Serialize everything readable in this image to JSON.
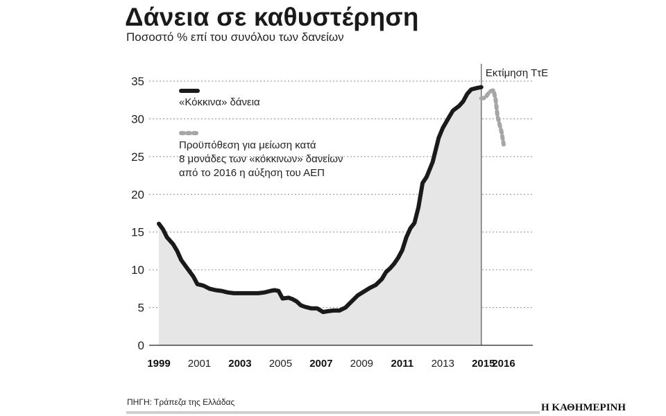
{
  "header": {
    "title": "Δάνεια σε καθυστέρηση",
    "subtitle": "Ποσοστό % επί του συνόλου των δανείων"
  },
  "footer": {
    "source": "ΠΗΓΗ: Τράπεζα της Ελλάδας",
    "publisher": "Η ΚΑΘΗΜΕΡΙΝΗ"
  },
  "chart_data": {
    "type": "line",
    "title": "Δάνεια σε καθυστέρηση",
    "subtitle": "Ποσοστό % επί του συνόλου των δανείων",
    "xlabel": "",
    "ylabel": "",
    "ylim": [
      0,
      35
    ],
    "yticks": [
      0,
      5,
      10,
      15,
      20,
      25,
      30,
      35
    ],
    "xlim": [
      1999,
      2016
    ],
    "xticks": [
      {
        "value": 1999,
        "label": "1999",
        "bold": true
      },
      {
        "value": 2001,
        "label": "2001",
        "bold": false
      },
      {
        "value": 2003,
        "label": "2003",
        "bold": true
      },
      {
        "value": 2005,
        "label": "2005",
        "bold": false
      },
      {
        "value": 2007,
        "label": "2007",
        "bold": true
      },
      {
        "value": 2009,
        "label": "2009",
        "bold": false
      },
      {
        "value": 2011,
        "label": "2011",
        "bold": true
      },
      {
        "value": 2013,
        "label": "2013",
        "bold": false
      },
      {
        "value": 2015,
        "label": "2015",
        "bold": true
      },
      {
        "value": 2016,
        "label": "2016",
        "bold": true
      }
    ],
    "grid": "horizontal dotted",
    "area_fill": "#e6e6e6",
    "annotation": {
      "label": "Εκτίμηση ΤτΕ",
      "x": 2014.9
    },
    "series": [
      {
        "name": "«Κόκκινα» δάνεια",
        "style": "solid",
        "color": "#1a1a1a",
        "x": [
          1999.0,
          1999.2,
          1999.4,
          1999.7,
          1999.9,
          2000.1,
          2000.4,
          2000.7,
          2000.9,
          2001.2,
          2001.5,
          2001.8,
          2002.1,
          2002.4,
          2002.7,
          2003.0,
          2003.3,
          2003.6,
          2003.9,
          2004.2,
          2004.5,
          2004.7,
          2004.9,
          2005.1,
          2005.4,
          2005.6,
          2005.8,
          2006.0,
          2006.2,
          2006.5,
          2006.8,
          2007.1,
          2007.3,
          2007.6,
          2007.9,
          2008.2,
          2008.5,
          2008.8,
          2009.1,
          2009.4,
          2009.7,
          2010.0,
          2010.2,
          2010.4,
          2010.6,
          2010.8,
          2011.0,
          2011.2,
          2011.4,
          2011.6,
          2011.8,
          2012.0,
          2012.2,
          2012.5,
          2012.8,
          2013.0,
          2013.3,
          2013.5,
          2013.8,
          2014.0,
          2014.2,
          2014.4,
          2014.7,
          2014.9
        ],
        "values": [
          16.1,
          15.4,
          14.3,
          13.4,
          12.5,
          11.3,
          10.2,
          9.1,
          8.1,
          7.9,
          7.5,
          7.3,
          7.2,
          7.0,
          6.9,
          6.9,
          6.9,
          6.9,
          6.9,
          7.0,
          7.2,
          7.3,
          7.2,
          6.2,
          6.3,
          6.1,
          5.8,
          5.3,
          5.1,
          4.9,
          4.9,
          4.4,
          4.5,
          4.6,
          4.6,
          5.0,
          5.8,
          6.6,
          7.1,
          7.6,
          8.0,
          8.8,
          9.7,
          10.2,
          10.8,
          11.6,
          12.6,
          14.3,
          15.5,
          16.2,
          18.3,
          21.5,
          22.3,
          24.3,
          27.5,
          28.8,
          30.2,
          31.1,
          31.7,
          32.3,
          33.3,
          33.9,
          34.1,
          34.2
        ]
      },
      {
        "name": "Προϋπόθεση για μείωση κατά 8 μονάδες των «κόκκινων» δανείων από το 2016 η αύξηση του ΑΕΠ",
        "style": "dotted",
        "color": "#a6a6a6",
        "x": [
          2014.9,
          2015.1,
          2015.3,
          2015.5,
          2015.6,
          2015.7,
          2015.9,
          2016.0
        ],
        "values": [
          32.7,
          32.8,
          33.6,
          33.8,
          32.6,
          30.3,
          28.2,
          26.6
        ]
      }
    ],
    "legend": {
      "placement": "top-left"
    }
  }
}
